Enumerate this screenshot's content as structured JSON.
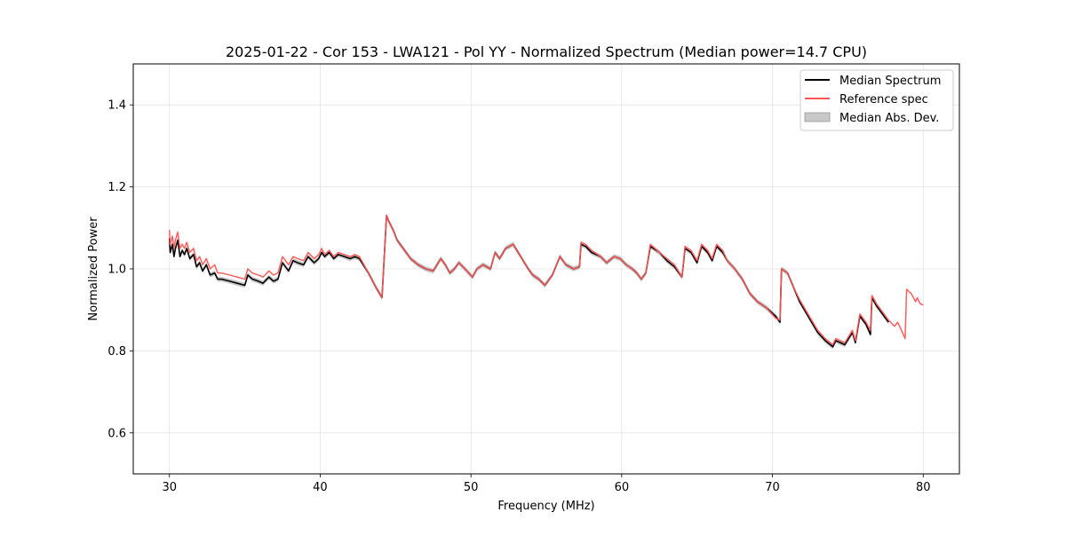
{
  "chart_data": {
    "type": "line",
    "title": "2025-01-22 - Cor 153 - LWA121 - Pol YY - Normalized Spectrum (Median power=14.7 CPU)",
    "xlabel": "Frequency (MHz)",
    "ylabel": "Normalized Power",
    "xlim": [
      27.6,
      82.4
    ],
    "ylim": [
      0.5,
      1.5
    ],
    "xticks": [
      30,
      40,
      50,
      60,
      70,
      80
    ],
    "xtick_labels": [
      "30",
      "40",
      "50",
      "60",
      "70",
      "80"
    ],
    "yticks": [
      0.6,
      0.8,
      1.0,
      1.2,
      1.4
    ],
    "ytick_labels": [
      "0.6",
      "0.8",
      "1.0",
      "1.2",
      "1.4"
    ],
    "grid": true,
    "legend_position": "top-right",
    "colors": {
      "median": "#000000",
      "reference": "#ff5555",
      "mad": "#c8c8c8"
    },
    "legend": [
      "Median Spectrum",
      "Reference spec",
      "Median Abs. Dev."
    ],
    "series": [
      {
        "name": "Reference spec",
        "x": [
          30.0,
          30.05,
          30.2,
          30.3,
          30.4,
          30.55,
          30.7,
          30.85,
          31.0,
          31.15,
          31.35,
          31.6,
          31.8,
          32.0,
          32.2,
          32.45,
          32.7,
          33.0,
          33.2,
          33.45,
          34.0,
          34.5,
          35.0,
          35.2,
          35.5,
          35.9,
          36.2,
          36.6,
          36.9,
          37.2,
          37.5,
          37.9,
          38.2,
          38.5,
          38.9,
          39.2,
          39.6,
          39.9,
          40.1,
          40.3,
          40.6,
          40.9,
          41.2,
          41.6,
          42.0,
          42.3,
          42.6,
          43.2,
          43.7,
          44.1,
          44.4,
          44.5,
          44.9,
          45.1,
          45.5,
          46.0,
          46.5,
          47.0,
          47.5,
          48.0,
          48.3,
          48.6,
          48.9,
          49.2,
          49.6,
          50.1,
          50.4,
          50.8,
          51.3,
          51.6,
          51.9,
          52.3,
          52.8,
          53.3,
          53.8,
          54.1,
          54.5,
          54.9,
          55.4,
          55.9,
          56.3,
          56.8,
          57.2,
          57.3,
          57.6,
          58.0,
          58.6,
          59.0,
          59.5,
          59.9,
          60.3,
          60.7,
          61.0,
          61.3,
          61.6,
          61.9,
          62.5,
          63.0,
          63.5,
          64.0,
          64.2,
          64.6,
          65.0,
          65.3,
          65.7,
          66.0,
          66.3,
          66.7,
          67.0,
          67.5,
          68.0,
          68.5,
          69.0,
          69.6,
          70.2,
          70.5,
          70.6,
          71.0,
          71.4,
          71.8,
          72.2,
          72.6,
          73.0,
          73.5,
          74.0,
          74.2,
          74.5,
          74.8,
          75.3,
          75.5,
          75.8,
          76.2,
          76.5,
          76.6,
          76.9,
          77.3,
          77.7,
          78.1,
          78.3,
          78.5,
          78.8,
          78.9,
          79.2,
          79.5,
          79.6,
          79.8,
          80.0
        ],
        "y": [
          1.095,
          1.06,
          1.08,
          1.05,
          1.07,
          1.09,
          1.05,
          1.06,
          1.05,
          1.065,
          1.04,
          1.05,
          1.02,
          1.03,
          1.01,
          1.025,
          1.0,
          1.01,
          0.99,
          0.99,
          0.985,
          0.98,
          0.975,
          1.0,
          0.99,
          0.985,
          0.98,
          0.995,
          0.985,
          0.99,
          1.03,
          1.01,
          1.03,
          1.025,
          1.02,
          1.04,
          1.025,
          1.035,
          1.05,
          1.035,
          1.045,
          1.03,
          1.04,
          1.035,
          1.03,
          1.035,
          1.03,
          0.99,
          0.955,
          0.93,
          1.13,
          1.12,
          1.09,
          1.07,
          1.05,
          1.025,
          1.01,
          1.0,
          0.995,
          1.025,
          1.01,
          0.99,
          1.0,
          1.015,
          1.0,
          0.98,
          1.0,
          1.01,
          1.0,
          1.04,
          1.025,
          1.05,
          1.06,
          1.03,
          1.0,
          0.985,
          0.975,
          0.96,
          0.985,
          1.03,
          1.01,
          1.0,
          1.005,
          1.065,
          1.06,
          1.045,
          1.03,
          1.015,
          1.03,
          1.025,
          1.01,
          1.0,
          0.99,
          0.975,
          0.99,
          1.06,
          1.04,
          1.025,
          1.01,
          0.98,
          1.055,
          1.045,
          1.02,
          1.06,
          1.045,
          1.025,
          1.06,
          1.045,
          1.02,
          1.0,
          0.975,
          0.94,
          0.92,
          0.905,
          0.88,
          0.875,
          1.0,
          0.99,
          0.955,
          0.925,
          0.9,
          0.875,
          0.85,
          0.83,
          0.815,
          0.83,
          0.825,
          0.82,
          0.85,
          0.825,
          0.89,
          0.87,
          0.85,
          0.935,
          0.915,
          0.895,
          0.875,
          0.86,
          0.87,
          0.855,
          0.83,
          0.95,
          0.94,
          0.92,
          0.93,
          0.915,
          0.912
        ]
      },
      {
        "name": "Median Spectrum",
        "x": [
          30.0,
          30.05,
          30.2,
          30.3,
          30.4,
          30.55,
          30.7,
          30.85,
          31.0,
          31.15,
          31.35,
          31.6,
          31.8,
          32.0,
          32.2,
          32.45,
          32.7,
          33.0,
          33.2,
          33.45,
          34.0,
          34.5,
          35.0,
          35.2,
          35.5,
          35.9,
          36.2,
          36.6,
          36.9,
          37.2,
          37.5,
          37.9,
          38.2,
          38.5,
          38.9,
          39.2,
          39.6,
          39.9,
          40.1,
          40.3,
          40.6,
          40.9,
          41.2,
          41.6,
          42.0,
          42.3,
          42.6,
          43.2,
          43.7,
          44.1,
          44.4,
          44.5,
          44.9,
          45.1,
          45.5,
          46.0,
          46.5,
          47.0,
          47.5,
          48.0,
          48.3,
          48.6,
          48.9,
          49.2,
          49.6,
          50.1,
          50.4,
          50.8,
          51.3,
          51.6,
          51.9,
          52.3,
          52.8,
          53.3,
          53.8,
          54.1,
          54.5,
          54.9,
          55.4,
          55.9,
          56.3,
          56.8,
          57.2,
          57.3,
          57.6,
          58.0,
          58.6,
          59.0,
          59.5,
          59.9,
          60.3,
          60.7,
          61.0,
          61.3,
          61.6,
          61.9,
          62.5,
          63.0,
          63.5,
          64.0,
          64.2,
          64.6,
          65.0,
          65.3,
          65.7,
          66.0,
          66.3,
          66.7,
          67.0,
          67.5,
          68.0,
          68.5,
          69.0,
          69.6,
          70.2,
          70.5,
          70.6,
          71.0,
          71.4,
          71.8,
          72.2,
          72.6,
          73.0,
          73.5,
          74.0,
          74.2,
          74.5,
          74.8,
          75.3,
          75.5,
          75.8,
          76.2,
          76.5,
          76.6,
          76.9,
          77.3,
          77.7
        ],
        "y": [
          1.075,
          1.04,
          1.06,
          1.03,
          1.05,
          1.07,
          1.03,
          1.045,
          1.035,
          1.05,
          1.025,
          1.035,
          1.005,
          1.015,
          0.995,
          1.01,
          0.985,
          0.99,
          0.975,
          0.975,
          0.97,
          0.965,
          0.96,
          0.985,
          0.975,
          0.97,
          0.965,
          0.98,
          0.97,
          0.975,
          1.015,
          0.995,
          1.02,
          1.015,
          1.01,
          1.03,
          1.015,
          1.025,
          1.04,
          1.03,
          1.04,
          1.025,
          1.035,
          1.03,
          1.025,
          1.03,
          1.025,
          0.99,
          0.955,
          0.93,
          1.13,
          1.12,
          1.09,
          1.07,
          1.05,
          1.025,
          1.01,
          1.0,
          0.995,
          1.025,
          1.01,
          0.99,
          1.0,
          1.015,
          1.0,
          0.98,
          1.0,
          1.01,
          1.0,
          1.04,
          1.025,
          1.05,
          1.06,
          1.03,
          1.0,
          0.985,
          0.975,
          0.96,
          0.985,
          1.03,
          1.01,
          1.0,
          1.005,
          1.06,
          1.055,
          1.04,
          1.03,
          1.015,
          1.03,
          1.025,
          1.01,
          1.0,
          0.99,
          0.975,
          0.99,
          1.055,
          1.04,
          1.02,
          1.005,
          0.98,
          1.05,
          1.04,
          1.015,
          1.055,
          1.04,
          1.02,
          1.055,
          1.04,
          1.02,
          1.0,
          0.975,
          0.94,
          0.92,
          0.905,
          0.885,
          0.87,
          1.0,
          0.99,
          0.955,
          0.92,
          0.895,
          0.87,
          0.845,
          0.825,
          0.81,
          0.825,
          0.82,
          0.815,
          0.845,
          0.82,
          0.885,
          0.865,
          0.84,
          0.93,
          0.91,
          0.89,
          0.87
        ]
      }
    ],
    "mad_band_width": 0.006
  }
}
